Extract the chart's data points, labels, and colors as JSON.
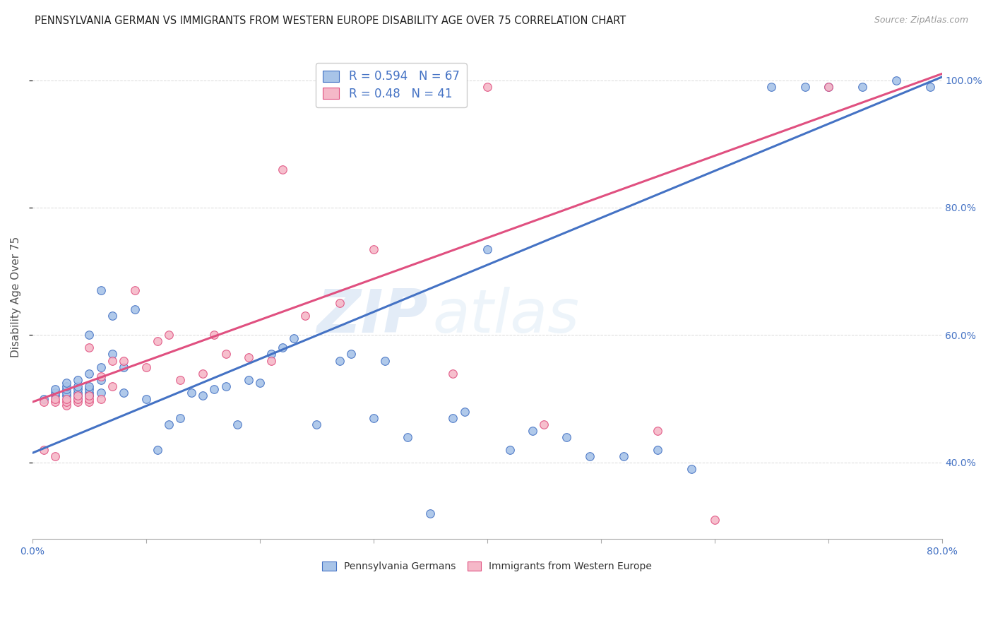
{
  "title": "PENNSYLVANIA GERMAN VS IMMIGRANTS FROM WESTERN EUROPE DISABILITY AGE OVER 75 CORRELATION CHART",
  "source": "Source: ZipAtlas.com",
  "ylabel": "Disability Age Over 75",
  "xlim": [
    0.0,
    0.8
  ],
  "ylim": [
    0.28,
    1.04
  ],
  "xticks": [
    0.0,
    0.1,
    0.2,
    0.3,
    0.4,
    0.5,
    0.6,
    0.7,
    0.8
  ],
  "xticklabels": [
    "0.0%",
    "",
    "",
    "",
    "",
    "",
    "",
    "",
    "80.0%"
  ],
  "yticks_right": [
    0.4,
    0.6,
    0.8,
    1.0
  ],
  "ytick_right_labels": [
    "40.0%",
    "60.0%",
    "80.0%",
    "100.0%"
  ],
  "blue_color": "#a8c4e8",
  "pink_color": "#f5b8c8",
  "blue_line_color": "#4472c4",
  "pink_line_color": "#e05080",
  "R_blue": 0.594,
  "N_blue": 67,
  "R_pink": 0.48,
  "N_pink": 41,
  "watermark_zip": "ZIP",
  "watermark_atlas": "atlas",
  "legend_label_blue": "Pennsylvania Germans",
  "legend_label_pink": "Immigrants from Western Europe",
  "blue_line_x0": 0.0,
  "blue_line_y0": 0.415,
  "blue_line_x1": 0.8,
  "blue_line_y1": 1.005,
  "pink_line_x0": 0.0,
  "pink_line_y0": 0.495,
  "pink_line_x1": 0.8,
  "pink_line_y1": 1.01,
  "blue_scatter_x": [
    0.01,
    0.02,
    0.02,
    0.02,
    0.03,
    0.03,
    0.03,
    0.03,
    0.03,
    0.04,
    0.04,
    0.04,
    0.04,
    0.04,
    0.04,
    0.05,
    0.05,
    0.05,
    0.05,
    0.05,
    0.05,
    0.06,
    0.06,
    0.06,
    0.06,
    0.07,
    0.07,
    0.08,
    0.08,
    0.09,
    0.1,
    0.11,
    0.12,
    0.13,
    0.14,
    0.15,
    0.16,
    0.17,
    0.18,
    0.19,
    0.2,
    0.21,
    0.22,
    0.23,
    0.25,
    0.27,
    0.28,
    0.3,
    0.31,
    0.33,
    0.35,
    0.37,
    0.38,
    0.4,
    0.42,
    0.44,
    0.47,
    0.49,
    0.52,
    0.55,
    0.58,
    0.65,
    0.68,
    0.7,
    0.73,
    0.76,
    0.79
  ],
  "blue_scatter_y": [
    0.5,
    0.505,
    0.51,
    0.515,
    0.505,
    0.51,
    0.515,
    0.52,
    0.525,
    0.5,
    0.505,
    0.51,
    0.515,
    0.52,
    0.53,
    0.505,
    0.51,
    0.515,
    0.52,
    0.54,
    0.6,
    0.51,
    0.53,
    0.55,
    0.67,
    0.57,
    0.63,
    0.51,
    0.55,
    0.64,
    0.5,
    0.42,
    0.46,
    0.47,
    0.51,
    0.505,
    0.515,
    0.52,
    0.46,
    0.53,
    0.525,
    0.57,
    0.58,
    0.595,
    0.46,
    0.56,
    0.57,
    0.47,
    0.56,
    0.44,
    0.32,
    0.47,
    0.48,
    0.735,
    0.42,
    0.45,
    0.44,
    0.41,
    0.41,
    0.42,
    0.39,
    0.99,
    0.99,
    0.99,
    0.99,
    1.0,
    0.99
  ],
  "pink_scatter_x": [
    0.01,
    0.01,
    0.02,
    0.02,
    0.02,
    0.03,
    0.03,
    0.03,
    0.04,
    0.04,
    0.04,
    0.05,
    0.05,
    0.05,
    0.05,
    0.06,
    0.06,
    0.07,
    0.07,
    0.08,
    0.09,
    0.1,
    0.11,
    0.12,
    0.13,
    0.15,
    0.16,
    0.17,
    0.19,
    0.21,
    0.22,
    0.24,
    0.27,
    0.3,
    0.35,
    0.37,
    0.4,
    0.45,
    0.55,
    0.6,
    0.7
  ],
  "pink_scatter_y": [
    0.495,
    0.42,
    0.495,
    0.5,
    0.41,
    0.49,
    0.495,
    0.5,
    0.495,
    0.5,
    0.505,
    0.495,
    0.5,
    0.505,
    0.58,
    0.5,
    0.535,
    0.52,
    0.56,
    0.56,
    0.67,
    0.55,
    0.59,
    0.6,
    0.53,
    0.54,
    0.6,
    0.57,
    0.565,
    0.56,
    0.86,
    0.63,
    0.65,
    0.735,
    0.995,
    0.54,
    0.99,
    0.46,
    0.45,
    0.31,
    0.99
  ],
  "grid_color": "#d8d8d8",
  "background_color": "#ffffff"
}
